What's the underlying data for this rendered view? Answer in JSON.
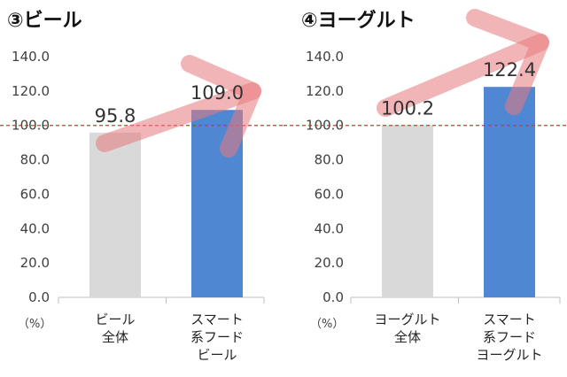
{
  "chart_data": [
    {
      "type": "bar",
      "title": "③ビール",
      "unit_label": "（%）",
      "categories": [
        [
          "ビール",
          "全体"
        ],
        [
          "スマート",
          "系フード",
          "ビール"
        ]
      ],
      "values": [
        95.8,
        109.0
      ],
      "value_labels": [
        "95.8",
        "109.0"
      ],
      "bar_colors": [
        "#d9d9d9",
        "#4f87d3"
      ],
      "ylim": [
        0,
        140
      ],
      "yticks": [
        0,
        20,
        40,
        60,
        80,
        100,
        120,
        140
      ],
      "ytick_labels": [
        "0.0",
        "20.0",
        "40.0",
        "60.0",
        "80.0",
        "100.0",
        "120.0",
        "140.0"
      ],
      "reference_line": {
        "value": 100,
        "color": "#e03030",
        "style": "dashed"
      },
      "trend_arrow": {
        "color": "#e8797b",
        "direction": "up-right"
      },
      "grid": false
    },
    {
      "type": "bar",
      "title": "④ヨーグルト",
      "unit_label": "（%）",
      "categories": [
        [
          "ヨーグルト",
          "全体"
        ],
        [
          "スマート",
          "系フード",
          "ヨーグルト"
        ]
      ],
      "values": [
        100.2,
        122.4
      ],
      "value_labels": [
        "100.2",
        "122.4"
      ],
      "bar_colors": [
        "#d9d9d9",
        "#4f87d3"
      ],
      "ylim": [
        0,
        140
      ],
      "yticks": [
        0,
        20,
        40,
        60,
        80,
        100,
        120,
        140
      ],
      "ytick_labels": [
        "0.0",
        "20.0",
        "40.0",
        "60.0",
        "80.0",
        "100.0",
        "120.0",
        "140.0"
      ],
      "reference_line": {
        "value": 100,
        "color": "#e03030",
        "style": "dashed"
      },
      "trend_arrow": {
        "color": "#e8797b",
        "direction": "up-right"
      },
      "grid": false
    }
  ]
}
